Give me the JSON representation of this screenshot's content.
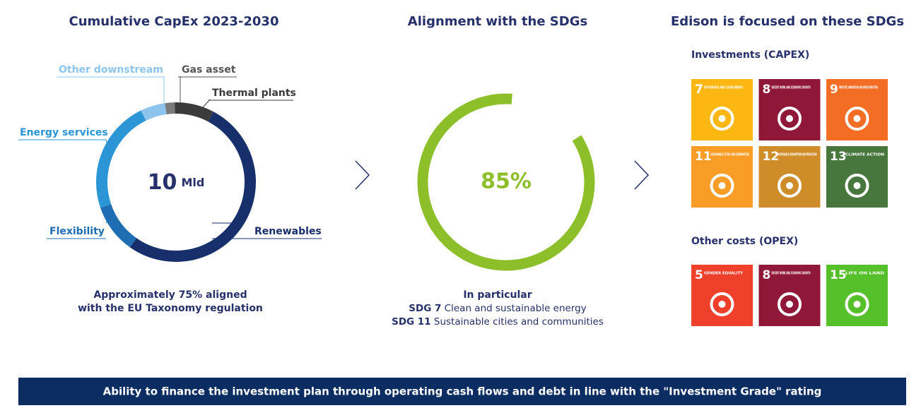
{
  "left": {
    "title": "Cumulative CapEx 2023-2030",
    "note": [
      "Approximately 75% aligned",
      "with the EU Taxonomy regulation"
    ]
  },
  "chart_data": [
    {
      "type": "donut",
      "center_value": "10",
      "center_unit": "Mld",
      "categories": [
        "Gas asset",
        "Thermal plants",
        "Renewables",
        "Flexibility",
        "Energy services",
        "Other downstream"
      ],
      "values": [
        2,
        8,
        52,
        10,
        23,
        5
      ],
      "colors": [
        "#7a7a7a",
        "#3b3b3b",
        "#17306b",
        "#1f6db3",
        "#2b95d6",
        "#8cc4ee"
      ]
    },
    {
      "type": "gauge",
      "values": [
        85
      ],
      "value_labels": [
        "85%"
      ],
      "color": "#8dbf2a"
    }
  ],
  "middle": {
    "title": "Alignment with the SDGs",
    "lead": "In particular",
    "items": [
      {
        "code": "SDG 7",
        "text": "Clean and sustainable energy"
      },
      {
        "code": "SDG 11",
        "text": "Sustainable cities and communities"
      }
    ]
  },
  "right": {
    "title": "Edison is focused on these SDGs",
    "groups": [
      {
        "label": "Investments (CAPEX)",
        "tiles": [
          {
            "number": "7",
            "name": "AFFORDABLE AND CLEAN ENERGY",
            "color": "#fcb712"
          },
          {
            "number": "8",
            "name": "DECENT WORK AND ECONOMIC GROWTH",
            "color": "#8f1838"
          },
          {
            "number": "9",
            "name": "INDUSTRY, INNOVATION AND INFRASTRUCTURE",
            "color": "#f36d25"
          },
          {
            "number": "11",
            "name": "SUSTAINABLE CITIES AND COMMUNITIES",
            "color": "#f99d26"
          },
          {
            "number": "12",
            "name": "RESPONSIBLE CONSUMPTION AND PRODUCTION",
            "color": "#cf8d2a"
          },
          {
            "number": "13",
            "name": "CLIMATE ACTION",
            "color": "#48773e"
          }
        ]
      },
      {
        "label": "Other costs (OPEX)",
        "tiles": [
          {
            "number": "5",
            "name": "GENDER EQUALITY",
            "color": "#ef402b"
          },
          {
            "number": "8",
            "name": "DECENT WORK AND ECONOMIC GROWTH",
            "color": "#8f1838"
          },
          {
            "number": "15",
            "name": "LIFE ON LAND",
            "color": "#56c02b"
          }
        ]
      }
    ]
  },
  "footer": "Ability to finance the investment plan through operating cash flows and debt in line with the \"Investment Grade\" rating"
}
